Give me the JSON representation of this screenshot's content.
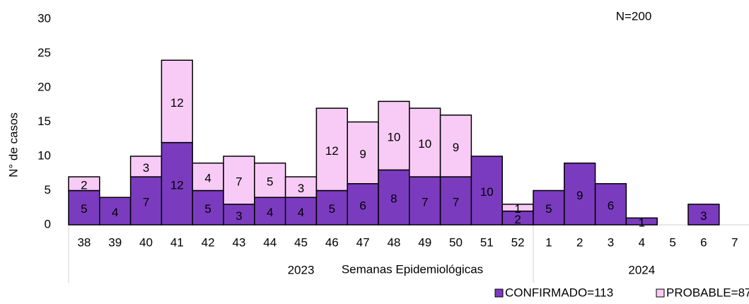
{
  "chart_data": {
    "type": "stacked_bar",
    "ylabel": "N° de casos",
    "xlabel": "Semanas Epidemiológicas",
    "annotation": "N=200",
    "categories": [
      "38",
      "39",
      "40",
      "41",
      "42",
      "43",
      "44",
      "45",
      "46",
      "47",
      "48",
      "49",
      "50",
      "51",
      "52",
      "1",
      "2",
      "3",
      "4",
      "5",
      "6",
      "7"
    ],
    "x_groups": [
      "2023",
      "2024"
    ],
    "series": [
      {
        "name": "CONFIRMADO=113",
        "color": "#7b3bbf",
        "values": [
          5,
          4,
          7,
          12,
          5,
          3,
          4,
          4,
          5,
          6,
          8,
          7,
          7,
          10,
          2,
          5,
          9,
          6,
          1,
          null,
          3,
          null
        ]
      },
      {
        "name": "PROBABLE=87",
        "color": "#f8cbf6",
        "values": [
          2,
          null,
          3,
          12,
          4,
          7,
          5,
          3,
          12,
          9,
          10,
          10,
          9,
          null,
          1,
          null,
          null,
          null,
          null,
          null,
          null,
          null
        ]
      }
    ],
    "ylim": [
      0,
      30
    ],
    "yticks": [
      0,
      5,
      10,
      15,
      20,
      25,
      30
    ],
    "legend": "bottom-right"
  }
}
